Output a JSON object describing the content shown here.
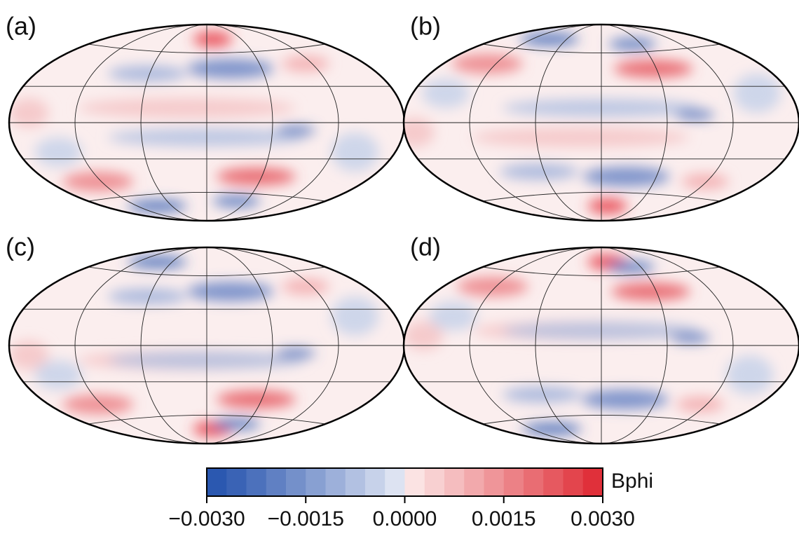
{
  "chart_data": {
    "type": "map",
    "panels": [
      {
        "label": "(a)"
      },
      {
        "label": "(b)"
      },
      {
        "label": "(c)"
      },
      {
        "label": "(d)"
      }
    ],
    "colorbar": {
      "label": "Bphi",
      "lim": [
        -0.003,
        0.003
      ],
      "ticks": [
        {
          "value": -0.003,
          "label": "−0.0030"
        },
        {
          "value": -0.0015,
          "label": "−0.0015"
        },
        {
          "value": 0,
          "label": "0.0000"
        },
        {
          "value": 0.0015,
          "label": "0.0015"
        },
        {
          "value": 0.003,
          "label": "0.0030"
        }
      ],
      "colors": [
        "#2b58b0",
        "#3a63b5",
        "#4c71bc",
        "#6080c3",
        "#7490ca",
        "#88a0d2",
        "#9db0da",
        "#b2c1e2",
        "#c7d2ea",
        "#dde3f2",
        "#fbe3e3",
        "#f8d0d1",
        "#f5bdbf",
        "#f2a9ac",
        "#ef9599",
        "#ec8186",
        "#e96d73",
        "#e65960",
        "#e3454d",
        "#e0303a"
      ]
    }
  }
}
